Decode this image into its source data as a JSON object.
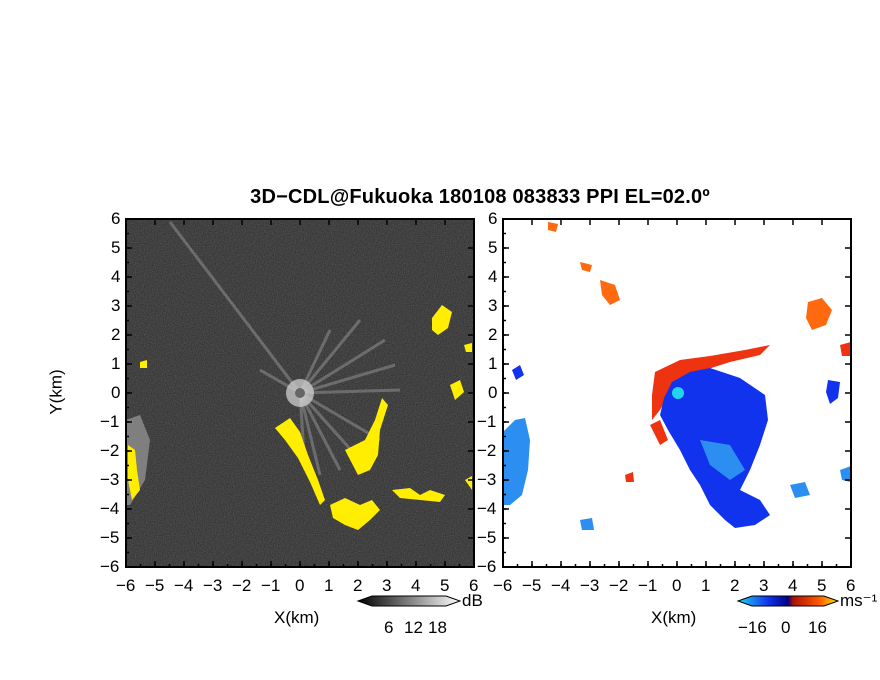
{
  "title": "3D−CDL@Fukuoka 180108 083833 PPI EL=02.0º",
  "left_panel": {
    "ylabel": "Y(km)",
    "xlabel": "X(km)",
    "x_ticks": [
      "−6",
      "−5",
      "−4",
      "−3",
      "−2",
      "−1",
      "0",
      "1",
      "2",
      "3",
      "4",
      "5",
      "6"
    ],
    "y_ticks": [
      "6",
      "5",
      "4",
      "3",
      "2",
      "1",
      "0",
      "−1",
      "−2",
      "−3",
      "−4",
      "−5",
      "−6"
    ],
    "colorbar": {
      "ticks": [
        "6",
        "12",
        "18"
      ],
      "unit": "dB"
    },
    "colors": {
      "background": "#2a2a2a",
      "highlight": "#ffee00"
    }
  },
  "right_panel": {
    "xlabel": "X(km)",
    "x_ticks": [
      "−6",
      "−5",
      "−4",
      "−3",
      "−2",
      "−1",
      "0",
      "1",
      "2",
      "3",
      "4",
      "5",
      "6"
    ],
    "y_ticks": [
      "6",
      "5",
      "4",
      "3",
      "2",
      "1",
      "0",
      "−1",
      "−2",
      "−3",
      "−4",
      "−5",
      "−6"
    ],
    "colorbar": {
      "ticks": [
        "−16",
        "0",
        "16"
      ],
      "unit": "ms⁻¹"
    },
    "colors": {
      "approaching": "#1133ee",
      "receding": "#ee3311",
      "far": "#2b8ef0",
      "marker": "#22d4f0"
    }
  }
}
